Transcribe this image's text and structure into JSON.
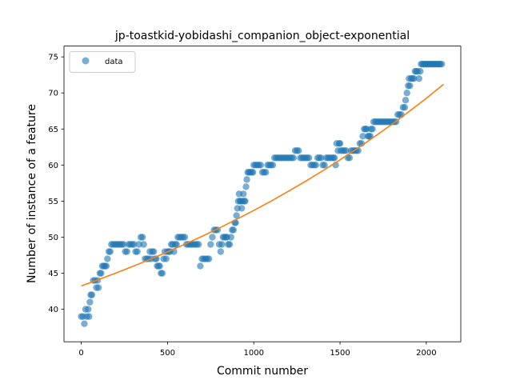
{
  "chart_data": {
    "type": "scatter",
    "title": "jp-toastkid-yobidashi_companion_object-exponential",
    "xlabel": "Commit number",
    "ylabel": "Number of instance of a feature",
    "xlim": [
      -100,
      2200
    ],
    "ylim": [
      35.5,
      76.5
    ],
    "x_ticks": [
      0,
      500,
      1000,
      1500,
      2000
    ],
    "y_ticks": [
      40,
      45,
      50,
      55,
      60,
      65,
      70,
      75
    ],
    "grid": false,
    "legend": {
      "position": "top-left",
      "entries": [
        "data"
      ]
    },
    "colors": {
      "data": "#1f77b4",
      "fit": "#ff7f0e"
    },
    "series": [
      {
        "name": "data",
        "marker": "circle",
        "points": [
          [
            0,
            39
          ],
          [
            10,
            39
          ],
          [
            18,
            38
          ],
          [
            25,
            40
          ],
          [
            32,
            39
          ],
          [
            40,
            40
          ],
          [
            45,
            39
          ],
          [
            50,
            41
          ],
          [
            55,
            42
          ],
          [
            62,
            42
          ],
          [
            70,
            44
          ],
          [
            80,
            44
          ],
          [
            88,
            43
          ],
          [
            95,
            44
          ],
          [
            100,
            43
          ],
          [
            108,
            45
          ],
          [
            115,
            45
          ],
          [
            122,
            46
          ],
          [
            130,
            46
          ],
          [
            138,
            46
          ],
          [
            145,
            46
          ],
          [
            152,
            47
          ],
          [
            160,
            48
          ],
          [
            168,
            48
          ],
          [
            175,
            49
          ],
          [
            185,
            49
          ],
          [
            195,
            49
          ],
          [
            205,
            49
          ],
          [
            215,
            49
          ],
          [
            225,
            49
          ],
          [
            235,
            49
          ],
          [
            245,
            49
          ],
          [
            255,
            48
          ],
          [
            265,
            48
          ],
          [
            275,
            49
          ],
          [
            285,
            49
          ],
          [
            295,
            49
          ],
          [
            305,
            49
          ],
          [
            315,
            48
          ],
          [
            325,
            48
          ],
          [
            335,
            49
          ],
          [
            345,
            50
          ],
          [
            355,
            50
          ],
          [
            362,
            49
          ],
          [
            370,
            47
          ],
          [
            380,
            47
          ],
          [
            390,
            47
          ],
          [
            398,
            48
          ],
          [
            405,
            47
          ],
          [
            412,
            48
          ],
          [
            420,
            48
          ],
          [
            428,
            47
          ],
          [
            435,
            47
          ],
          [
            440,
            46
          ],
          [
            448,
            46
          ],
          [
            455,
            46
          ],
          [
            462,
            45
          ],
          [
            470,
            45
          ],
          [
            478,
            47
          ],
          [
            485,
            48
          ],
          [
            492,
            47
          ],
          [
            500,
            48
          ],
          [
            508,
            48
          ],
          [
            515,
            48
          ],
          [
            522,
            49
          ],
          [
            530,
            49
          ],
          [
            537,
            48
          ],
          [
            545,
            49
          ],
          [
            552,
            49
          ],
          [
            560,
            50
          ],
          [
            570,
            50
          ],
          [
            580,
            50
          ],
          [
            590,
            50
          ],
          [
            600,
            50
          ],
          [
            610,
            49
          ],
          [
            620,
            49
          ],
          [
            630,
            49
          ],
          [
            640,
            49
          ],
          [
            650,
            49
          ],
          [
            660,
            49
          ],
          [
            670,
            49
          ],
          [
            680,
            49
          ],
          [
            690,
            46
          ],
          [
            700,
            47
          ],
          [
            710,
            47
          ],
          [
            720,
            47
          ],
          [
            730,
            47
          ],
          [
            740,
            47
          ],
          [
            750,
            49
          ],
          [
            760,
            50
          ],
          [
            770,
            51
          ],
          [
            780,
            51
          ],
          [
            790,
            51
          ],
          [
            800,
            49
          ],
          [
            808,
            48
          ],
          [
            815,
            49
          ],
          [
            822,
            50
          ],
          [
            830,
            50
          ],
          [
            838,
            50
          ],
          [
            845,
            50
          ],
          [
            852,
            49
          ],
          [
            860,
            49
          ],
          [
            868,
            50
          ],
          [
            875,
            51
          ],
          [
            882,
            51
          ],
          [
            890,
            52
          ],
          [
            895,
            52
          ],
          [
            900,
            53
          ],
          [
            905,
            54
          ],
          [
            910,
            55
          ],
          [
            915,
            56
          ],
          [
            920,
            55
          ],
          [
            925,
            55
          ],
          [
            930,
            54
          ],
          [
            935,
            55
          ],
          [
            940,
            56
          ],
          [
            945,
            55
          ],
          [
            950,
            55
          ],
          [
            955,
            57
          ],
          [
            960,
            58
          ],
          [
            965,
            59
          ],
          [
            972,
            59
          ],
          [
            980,
            59
          ],
          [
            988,
            59
          ],
          [
            995,
            59
          ],
          [
            1000,
            60
          ],
          [
            1010,
            60
          ],
          [
            1020,
            60
          ],
          [
            1030,
            60
          ],
          [
            1040,
            60
          ],
          [
            1050,
            59
          ],
          [
            1060,
            59
          ],
          [
            1070,
            59
          ],
          [
            1080,
            60
          ],
          [
            1090,
            60
          ],
          [
            1100,
            60
          ],
          [
            1110,
            60
          ],
          [
            1120,
            61
          ],
          [
            1130,
            61
          ],
          [
            1140,
            61
          ],
          [
            1150,
            61
          ],
          [
            1160,
            61
          ],
          [
            1170,
            61
          ],
          [
            1180,
            61
          ],
          [
            1190,
            61
          ],
          [
            1200,
            61
          ],
          [
            1210,
            61
          ],
          [
            1220,
            61
          ],
          [
            1230,
            61
          ],
          [
            1240,
            62
          ],
          [
            1250,
            62
          ],
          [
            1260,
            62
          ],
          [
            1270,
            61
          ],
          [
            1280,
            61
          ],
          [
            1290,
            61
          ],
          [
            1300,
            61
          ],
          [
            1310,
            61
          ],
          [
            1320,
            61
          ],
          [
            1330,
            60
          ],
          [
            1340,
            60
          ],
          [
            1350,
            60
          ],
          [
            1360,
            60
          ],
          [
            1370,
            61
          ],
          [
            1380,
            61
          ],
          [
            1390,
            61
          ],
          [
            1400,
            60
          ],
          [
            1410,
            60
          ],
          [
            1420,
            61
          ],
          [
            1430,
            61
          ],
          [
            1440,
            61
          ],
          [
            1450,
            61
          ],
          [
            1460,
            61
          ],
          [
            1468,
            61
          ],
          [
            1475,
            60
          ],
          [
            1480,
            63
          ],
          [
            1488,
            62
          ],
          [
            1495,
            63
          ],
          [
            1500,
            63
          ],
          [
            1505,
            62
          ],
          [
            1515,
            62
          ],
          [
            1525,
            62
          ],
          [
            1535,
            62
          ],
          [
            1545,
            61
          ],
          [
            1555,
            61
          ],
          [
            1565,
            62
          ],
          [
            1575,
            62
          ],
          [
            1585,
            62
          ],
          [
            1595,
            62
          ],
          [
            1605,
            62
          ],
          [
            1615,
            63
          ],
          [
            1625,
            63
          ],
          [
            1632,
            64
          ],
          [
            1640,
            65
          ],
          [
            1648,
            65
          ],
          [
            1655,
            65
          ],
          [
            1662,
            64
          ],
          [
            1668,
            64
          ],
          [
            1675,
            64
          ],
          [
            1680,
            65
          ],
          [
            1688,
            65
          ],
          [
            1695,
            66
          ],
          [
            1705,
            66
          ],
          [
            1715,
            66
          ],
          [
            1725,
            66
          ],
          [
            1735,
            66
          ],
          [
            1745,
            66
          ],
          [
            1755,
            66
          ],
          [
            1765,
            66
          ],
          [
            1775,
            66
          ],
          [
            1785,
            66
          ],
          [
            1795,
            66
          ],
          [
            1805,
            66
          ],
          [
            1815,
            66
          ],
          [
            1825,
            66
          ],
          [
            1835,
            67
          ],
          [
            1845,
            67
          ],
          [
            1855,
            67
          ],
          [
            1865,
            68
          ],
          [
            1875,
            68
          ],
          [
            1880,
            69
          ],
          [
            1888,
            70
          ],
          [
            1895,
            71
          ],
          [
            1900,
            72
          ],
          [
            1905,
            71
          ],
          [
            1912,
            72
          ],
          [
            1920,
            72
          ],
          [
            1928,
            72
          ],
          [
            1935,
            73
          ],
          [
            1942,
            73
          ],
          [
            1950,
            73
          ],
          [
            1958,
            72
          ],
          [
            1965,
            73
          ],
          [
            1970,
            74
          ],
          [
            1978,
            74
          ],
          [
            1985,
            74
          ],
          [
            1992,
            74
          ],
          [
            2000,
            74
          ],
          [
            2008,
            74
          ],
          [
            2015,
            74
          ],
          [
            2022,
            74
          ],
          [
            2030,
            74
          ],
          [
            2038,
            74
          ],
          [
            2045,
            74
          ],
          [
            2052,
            74
          ],
          [
            2060,
            74
          ],
          [
            2068,
            74
          ],
          [
            2075,
            74
          ],
          [
            2080,
            74
          ],
          [
            2090,
            74
          ]
        ]
      },
      {
        "name": "",
        "type": "line",
        "points": [
          [
            0,
            43.25
          ],
          [
            100,
            44.12
          ],
          [
            200,
            45.02
          ],
          [
            300,
            45.96
          ],
          [
            400,
            46.94
          ],
          [
            500,
            47.96
          ],
          [
            600,
            49.02
          ],
          [
            700,
            50.12
          ],
          [
            800,
            51.27
          ],
          [
            900,
            52.47
          ],
          [
            1000,
            53.71
          ],
          [
            1100,
            55.0
          ],
          [
            1200,
            56.35
          ],
          [
            1300,
            57.75
          ],
          [
            1400,
            59.21
          ],
          [
            1500,
            60.72
          ],
          [
            1600,
            62.3
          ],
          [
            1700,
            63.94
          ],
          [
            1800,
            65.64
          ],
          [
            1900,
            67.42
          ],
          [
            2000,
            69.26
          ],
          [
            2090,
            71.0
          ],
          [
            2100,
            71.2
          ]
        ]
      }
    ]
  }
}
